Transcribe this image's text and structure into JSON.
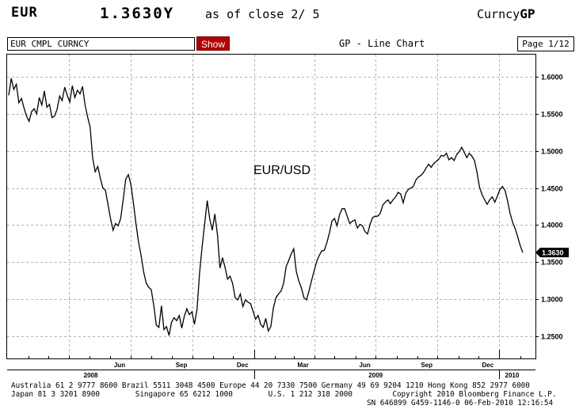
{
  "header": {
    "ticker": "EUR",
    "price": "1.3630Y",
    "as_of": "as of close  2/ 5",
    "function_prefix": "Curncy",
    "function_code": "GP"
  },
  "command_bar": {
    "security_value": "EUR CMPL CURNCY",
    "show_label": "Show",
    "chart_title": "GP - Line Chart",
    "page_indicator": "Page 1/12"
  },
  "chart_data": {
    "type": "line",
    "series": [
      {
        "name": "EUR/USD",
        "values": [
          1.575,
          1.598,
          1.583,
          1.59,
          1.565,
          1.571,
          1.558,
          1.547,
          1.54,
          1.553,
          1.557,
          1.55,
          1.572,
          1.562,
          1.581,
          1.559,
          1.563,
          1.545,
          1.547,
          1.556,
          1.574,
          1.568,
          1.586,
          1.575,
          1.566,
          1.588,
          1.572,
          1.582,
          1.577,
          1.587,
          1.562,
          1.546,
          1.532,
          1.49,
          1.472,
          1.479,
          1.463,
          1.45,
          1.447,
          1.428,
          1.409,
          1.393,
          1.402,
          1.399,
          1.409,
          1.435,
          1.462,
          1.468,
          1.455,
          1.43,
          1.402,
          1.377,
          1.359,
          1.337,
          1.322,
          1.316,
          1.313,
          1.292,
          1.265,
          1.262,
          1.291,
          1.259,
          1.263,
          1.251,
          1.269,
          1.275,
          1.271,
          1.278,
          1.261,
          1.277,
          1.287,
          1.279,
          1.283,
          1.266,
          1.287,
          1.336,
          1.371,
          1.402,
          1.433,
          1.408,
          1.393,
          1.415,
          1.387,
          1.342,
          1.356,
          1.343,
          1.327,
          1.331,
          1.321,
          1.302,
          1.299,
          1.307,
          1.29,
          1.299,
          1.296,
          1.294,
          1.284,
          1.273,
          1.278,
          1.266,
          1.262,
          1.274,
          1.257,
          1.263,
          1.288,
          1.302,
          1.307,
          1.311,
          1.321,
          1.344,
          1.352,
          1.361,
          1.368,
          1.337,
          1.324,
          1.315,
          1.302,
          1.299,
          1.311,
          1.325,
          1.338,
          1.351,
          1.359,
          1.365,
          1.366,
          1.376,
          1.389,
          1.405,
          1.409,
          1.399,
          1.414,
          1.422,
          1.422,
          1.412,
          1.402,
          1.405,
          1.407,
          1.396,
          1.401,
          1.399,
          1.391,
          1.388,
          1.401,
          1.41,
          1.412,
          1.412,
          1.416,
          1.427,
          1.431,
          1.434,
          1.429,
          1.434,
          1.438,
          1.444,
          1.442,
          1.43,
          1.443,
          1.448,
          1.45,
          1.452,
          1.461,
          1.465,
          1.467,
          1.471,
          1.477,
          1.482,
          1.478,
          1.483,
          1.486,
          1.489,
          1.494,
          1.493,
          1.497,
          1.488,
          1.491,
          1.487,
          1.495,
          1.499,
          1.505,
          1.498,
          1.491,
          1.497,
          1.493,
          1.487,
          1.471,
          1.451,
          1.441,
          1.434,
          1.428,
          1.434,
          1.438,
          1.431,
          1.439,
          1.448,
          1.452,
          1.447,
          1.433,
          1.416,
          1.404,
          1.395,
          1.384,
          1.372,
          1.363
        ],
        "color": "#000000"
      }
    ],
    "x_start": "2008-01-02",
    "x_end": "2010-02-05",
    "x_ticks": [
      "Jun",
      "Sep",
      "Dec",
      "Mar",
      "Jun",
      "Sep",
      "Dec"
    ],
    "x_year_labels": [
      "2008",
      "2009",
      "2010"
    ],
    "y_ticks": [
      "1.6000",
      "1.5500",
      "1.5000",
      "1.4500",
      "1.4000",
      "1.3500",
      "1.3000",
      "1.2500"
    ],
    "ylim": [
      1.22,
      1.63
    ],
    "grid": true,
    "annotation": "EUR/USD",
    "last_value_label": "1.3630",
    "last_value": 1.363
  },
  "footer": {
    "line1": "Australia 61 2 9777 8600 Brazil 5511 3048 4500 Europe 44 20 7330 7500 Germany 49 69 9204 1210 Hong Kong 852 2977 6000",
    "line2": "Japan 81 3 3201 8900        Singapore 65 6212 1000        U.S. 1 212 318 2000         Copyright 2010 Bloomberg Finance L.P.",
    "line3": "SN 646899 G459-1146-0 06-Feb-2010 12:16:54"
  }
}
